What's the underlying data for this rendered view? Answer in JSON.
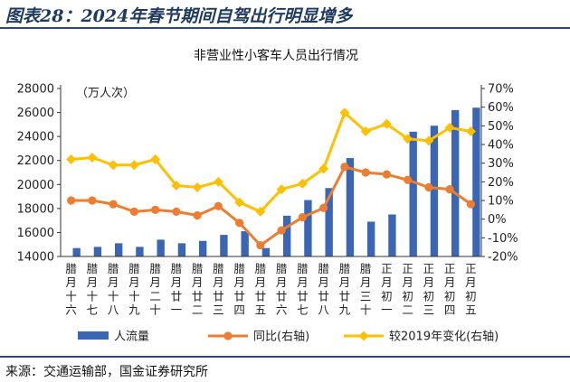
{
  "figure": {
    "title": "图表28：2024年春节期间自驾出行明显增多",
    "source": "来源：交通运输部，国金证券研究所"
  },
  "colors": {
    "bar": "#3a66b3",
    "yoy": "#ed7d31",
    "vs2019": "#ffc000",
    "border": "#2c4a73"
  },
  "chart_data": {
    "type": "bar",
    "title": "非营业性小客车人员出行情况",
    "unit_label": "（万人次）",
    "categories": [
      "腊月十六",
      "腊月十七",
      "腊月十八",
      "腊月十九",
      "腊月二十",
      "腊月廿一",
      "腊月廿二",
      "腊月廿三",
      "腊月廿四",
      "腊月廿五",
      "腊月廿六",
      "腊月廿七",
      "腊月廿八",
      "腊月廿九",
      "腊月三十",
      "正月初一",
      "正月初二",
      "正月初三",
      "正月初四",
      "正月初五"
    ],
    "y_left": {
      "min": 14000,
      "max": 28000,
      "step": 2000,
      "ticks": [
        "14000",
        "16000",
        "18000",
        "20000",
        "22000",
        "24000",
        "26000",
        "28000"
      ]
    },
    "y_right": {
      "min": -20,
      "max": 70,
      "step": 10,
      "ticks": [
        "-20%",
        "-10%",
        "0%",
        "10%",
        "20%",
        "30%",
        "40%",
        "50%",
        "60%",
        "70%"
      ]
    },
    "series": [
      {
        "name": "人流量",
        "type": "bar",
        "axis": "left",
        "values": [
          14700,
          14800,
          15100,
          14800,
          15400,
          15100,
          15300,
          15800,
          16100,
          14700,
          17400,
          18700,
          19700,
          22200,
          16900,
          17500,
          24400,
          24900,
          26200,
          26400
        ]
      },
      {
        "name": "同比(右轴)",
        "type": "line",
        "axis": "right",
        "values": [
          10,
          10,
          8,
          4,
          5,
          4,
          2,
          7,
          -2,
          -14,
          -6,
          1,
          6,
          28,
          25,
          24,
          21,
          17,
          16,
          8
        ]
      },
      {
        "name": "较2019年变化(右轴)",
        "type": "line",
        "axis": "right",
        "values": [
          32,
          33,
          29,
          29,
          32,
          18,
          17,
          20,
          9,
          4,
          16,
          19,
          27,
          57,
          47,
          51,
          43,
          42,
          49,
          47
        ]
      }
    ],
    "legend_position": "bottom",
    "grid": false
  }
}
